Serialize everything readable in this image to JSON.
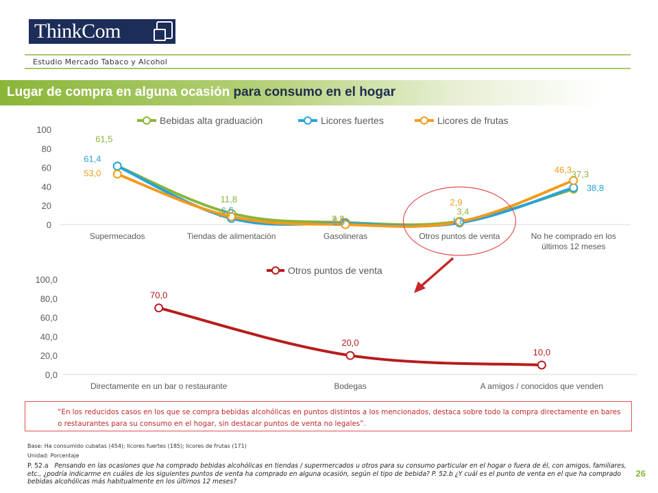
{
  "header": {
    "logo_text": "ThinkCom",
    "study_label": "Estudio Mercado Tabaco y Alcohol"
  },
  "slide": {
    "title_part1": "Lugar de compra en alguna ocasión ",
    "title_part2": "para consumo en el hogar",
    "page_number": "26"
  },
  "colors": {
    "green": "#8ab538",
    "blue": "#27a3dc",
    "orange": "#f29a1c",
    "red": "#b71c1c",
    "axis_text": "#595959"
  },
  "chart_data": [
    {
      "type": "line",
      "categories": [
        "Supermecados",
        "Tiendas de alimentación",
        "Gasolineras",
        "Otros puntos de venta",
        "No he comprado en los últimos 12 meses"
      ],
      "series": [
        {
          "name": "Bebidas alta graduación",
          "color": "#8ab538",
          "values": [
            61.5,
            11.8,
            2.2,
            3.4,
            37.3
          ],
          "labels": [
            "61,5",
            "11,8",
            "2,2",
            "3,4",
            "37,3"
          ]
        },
        {
          "name": "Licores fuertes",
          "color": "#27a3dc",
          "values": [
            61.4,
            6.5,
            1.3,
            1.8,
            38.8
          ],
          "labels": [
            "61,4",
            "6,5",
            "1,3",
            "1,8",
            "38,8"
          ]
        },
        {
          "name": "Licores de frutas",
          "color": "#f29a1c",
          "values": [
            53.0,
            8.4,
            0.0,
            2.9,
            46.3
          ],
          "labels": [
            "53,0",
            "8,4",
            "0,0",
            "2,9",
            "46,3"
          ]
        }
      ],
      "y_ticks": [
        "100",
        "80",
        "60",
        "40",
        "20",
        "0"
      ],
      "ylim": [
        0,
        100
      ],
      "legend": "top"
    },
    {
      "type": "line",
      "categories": [
        "Directamente en un bar o restaurante",
        "Bodegas",
        "A amigos / conocidos que venden"
      ],
      "series": [
        {
          "name": "Otros puntos de venta",
          "color": "#b71c1c",
          "values": [
            70.0,
            20.0,
            10.0
          ],
          "labels": [
            "70,0",
            "20,0",
            "10,0"
          ]
        }
      ],
      "y_ticks": [
        "100,0",
        "80,0",
        "60,0",
        "40,0",
        "20,0",
        "0,0"
      ],
      "ylim": [
        0,
        100
      ],
      "legend": "top"
    }
  ],
  "footer": {
    "quote": "“En los reducidos casos en los que se compra bebidas alcohólicas en puntos distintos a los mencionados, destaca sobre todo la compra directamente en bares o restaurantes para su consumo en el hogar, sin destacar puntos de venta no legales”.",
    "base": "Base: Ha consumido cubatas (454); licores fuertes (185); licores de frutas (171)",
    "unit": "Unidad: Porcentaje",
    "question_code": "P. 52.a",
    "question_text": "Pensando en las ocasiones que ha comprado bebidas alcohólicas en tiendas / supermercados u otros para su consumo particular en el hogar o fuera de él, con amigos, familiares, etc., ¿podría indicarme en cuáles de los siguientes puntos de venta ha comprado en alguna ocasión, según el tipo de bebida? P. 52.b ¿Y cuál es el punto de venta en el que ha comprado bebidas alcohólicas más habitualmente en los últimos 12 meses?"
  }
}
